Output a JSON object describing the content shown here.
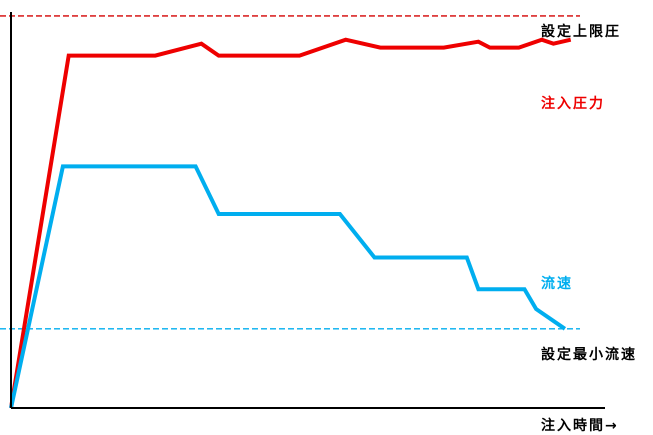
{
  "chart_data": {
    "type": "line",
    "title": "",
    "xlabel": "注入時間→",
    "ylabel": "",
    "xlim": [
      0,
      100
    ],
    "ylim": [
      0,
      100
    ],
    "grid": false,
    "legend": "none",
    "series": [
      {
        "name": "注入圧力",
        "color": "#ee0000",
        "x": [
          0,
          10,
          25,
          33,
          36,
          50,
          58,
          64,
          75,
          81,
          83,
          88,
          92,
          94,
          97
        ],
        "y": [
          0,
          89,
          89,
          92,
          89,
          89,
          93,
          91,
          91,
          92.5,
          91,
          91,
          93,
          92,
          93
        ]
      },
      {
        "name": "流速",
        "color": "#00aeef",
        "x": [
          0,
          9,
          32,
          36,
          57,
          63,
          79,
          81,
          89,
          91,
          96
        ],
        "y": [
          0,
          61,
          61,
          49,
          49,
          38,
          38,
          30,
          30,
          25,
          20
        ]
      }
    ],
    "reference_lines": [
      {
        "label": "設定上限圧",
        "y": 99,
        "color": "#d40000"
      },
      {
        "label": "設定最小流速",
        "y": 20,
        "color": "#00aeef"
      }
    ]
  }
}
